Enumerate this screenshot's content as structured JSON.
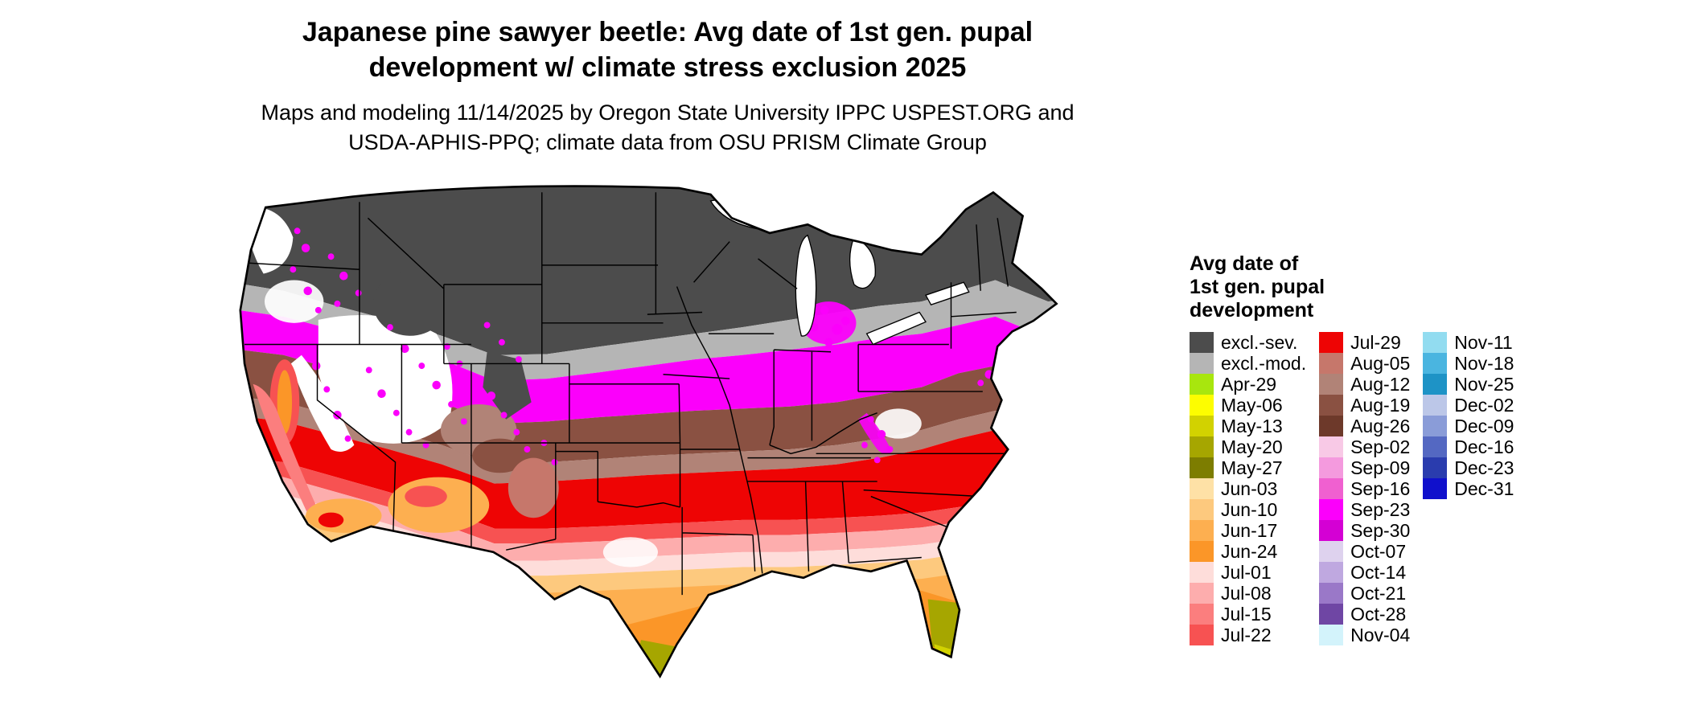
{
  "title": {
    "line1": "Japanese pine sawyer beetle: Avg date of 1st gen. pupal",
    "line2": "development w/ climate stress exclusion 2025"
  },
  "subtitle": {
    "line1": "Maps and modeling 11/14/2025 by Oregon State University IPPC USPEST.ORG and",
    "line2": "USDA-APHIS-PPQ; climate data from OSU PRISM Climate Group"
  },
  "legend": {
    "title_line1": "Avg date of",
    "title_line2": "1st gen. pupal",
    "title_line3": "development",
    "columns": [
      {
        "entries": [
          {
            "label": "excl.-sev.",
            "color": "#4c4c4c"
          },
          {
            "label": "excl.-mod.",
            "color": "#b5b5b5"
          },
          {
            "label": "Apr-29",
            "color": "#a8e60e"
          },
          {
            "label": "May-06",
            "color": "#fdfd00"
          },
          {
            "label": "May-13",
            "color": "#d2d200"
          },
          {
            "label": "May-20",
            "color": "#a6a600"
          },
          {
            "label": "May-27",
            "color": "#7d7d00"
          },
          {
            "label": "Jun-03",
            "color": "#fee1a6"
          },
          {
            "label": "Jun-10",
            "color": "#fdc97e"
          },
          {
            "label": "Jun-17",
            "color": "#fdaf50"
          },
          {
            "label": "Jun-24",
            "color": "#fb9628"
          },
          {
            "label": "Jul-01",
            "color": "#feddda"
          },
          {
            "label": "Jul-08",
            "color": "#fdadad"
          },
          {
            "label": "Jul-15",
            "color": "#fb7e7e"
          },
          {
            "label": "Jul-22",
            "color": "#f75252"
          }
        ]
      },
      {
        "entries": [
          {
            "label": "Jul-29",
            "color": "#ee0404"
          },
          {
            "label": "Aug-05",
            "color": "#c6776b"
          },
          {
            "label": "Aug-12",
            "color": "#b18377"
          },
          {
            "label": "Aug-19",
            "color": "#8a5142"
          },
          {
            "label": "Aug-26",
            "color": "#6d392a"
          },
          {
            "label": "Sep-02",
            "color": "#f8c9e6"
          },
          {
            "label": "Sep-09",
            "color": "#f49ade"
          },
          {
            "label": "Sep-16",
            "color": "#f060d0"
          },
          {
            "label": "Sep-23",
            "color": "#fb00fb"
          },
          {
            "label": "Sep-30",
            "color": "#d400d4"
          },
          {
            "label": "Oct-07",
            "color": "#ded2ee"
          },
          {
            "label": "Oct-14",
            "color": "#bfa8e0"
          },
          {
            "label": "Oct-21",
            "color": "#9a78c8"
          },
          {
            "label": "Oct-28",
            "color": "#6f46a4"
          },
          {
            "label": "Nov-04",
            "color": "#d3f3fb"
          }
        ]
      },
      {
        "entries": [
          {
            "label": "Nov-11",
            "color": "#92dcf0"
          },
          {
            "label": "Nov-18",
            "color": "#4ab5e0"
          },
          {
            "label": "Nov-25",
            "color": "#1e93c6"
          },
          {
            "label": "Dec-02",
            "color": "#bcc7e8"
          },
          {
            "label": "Dec-09",
            "color": "#8a9cd8"
          },
          {
            "label": "Dec-16",
            "color": "#5468c2"
          },
          {
            "label": "Dec-23",
            "color": "#2a3cae"
          },
          {
            "label": "Dec-31",
            "color": "#1010cc"
          }
        ]
      }
    ]
  }
}
